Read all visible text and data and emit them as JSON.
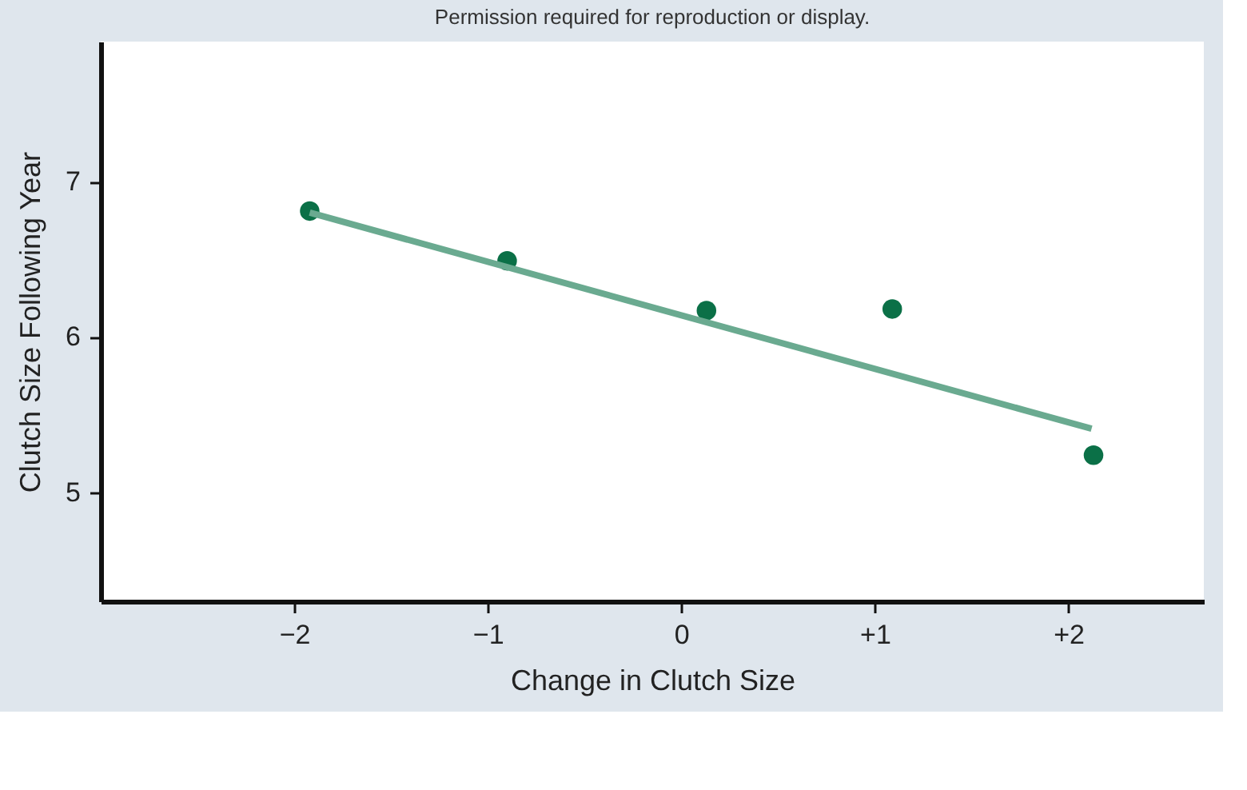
{
  "chart_data": {
    "type": "scatter",
    "xlabel": "Change in Clutch Size",
    "ylabel": "Clutch Size Following Year",
    "annotations": [
      "Permission required for reproduction or display."
    ],
    "x": [
      -1.92,
      -0.9,
      0.13,
      1.09,
      2.13
    ],
    "series": [
      {
        "type": "scatter",
        "color": "#0b7047",
        "values": [
          6.81,
          6.49,
          6.17,
          6.18,
          5.24
        ]
      },
      {
        "type": "line",
        "color": "#6aaa90",
        "marker": "none",
        "line_style": "solid",
        "x": [
          -1.92,
          2.12
        ],
        "values": [
          6.8,
          5.41
        ]
      }
    ],
    "xlim": [
      -3.0,
      2.7
    ],
    "ylim": [
      4.3,
      7.9
    ],
    "xticks": [
      {
        "value": -2,
        "label": "−2"
      },
      {
        "value": -1,
        "label": "−1"
      },
      0,
      {
        "value": 1,
        "label": "+1"
      },
      {
        "value": 2,
        "label": "+2"
      }
    ],
    "yticks": [
      5,
      6,
      7
    ],
    "grid": false,
    "marker": "circle"
  }
}
